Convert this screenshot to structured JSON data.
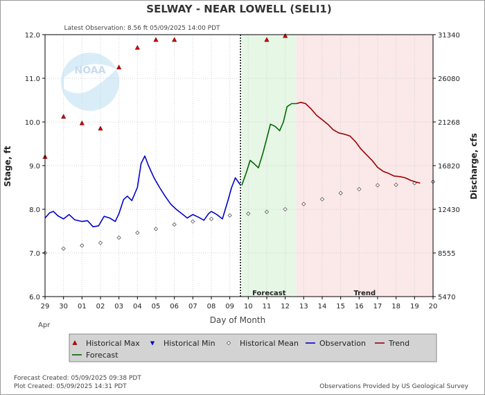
{
  "header": {
    "title": "SELWAY - NEAR LOWELL  (SELI1)",
    "latest_observation": "Latest Observation: 8.56 ft 05/09/2025 14:00 PDT"
  },
  "footer": {
    "forecast_created": "Forecast Created: 05/09/2025 09:38 PDT",
    "plot_created": "Plot Created: 05/09/2025 14:31 PDT",
    "provided_by": "Observations Provided by US Geological Survey"
  },
  "logo": {
    "text": "NOAA"
  },
  "chart_data": {
    "type": "line",
    "xlabel": "Day of Month",
    "ylabel_left": "Stage, ft",
    "ylabel_right": "Discharge, cfs",
    "x_range": [
      0,
      21
    ],
    "ylim": [
      6.0,
      12.0
    ],
    "x_tick_labels": [
      "29",
      "30",
      "01",
      "02",
      "03",
      "04",
      "05",
      "06",
      "07",
      "08",
      "09",
      "10",
      "11",
      "12",
      "13",
      "14",
      "15",
      "16",
      "17",
      "18",
      "19",
      "20"
    ],
    "month_label": "Apr",
    "y_ticks_left": [
      {
        "value": 6.0,
        "label": "6.0"
      },
      {
        "value": 7.0,
        "label": "7.0"
      },
      {
        "value": 8.0,
        "label": "8.0"
      },
      {
        "value": 9.0,
        "label": "9.0"
      },
      {
        "value": 10.0,
        "label": "10.0"
      },
      {
        "value": 11.0,
        "label": "11.0"
      },
      {
        "value": 12.0,
        "label": "12.0"
      }
    ],
    "y_ticks_right": [
      {
        "stage": 6.0,
        "label": "5470"
      },
      {
        "stage": 7.0,
        "label": "8555"
      },
      {
        "stage": 8.0,
        "label": "12430"
      },
      {
        "stage": 9.0,
        "label": "16820"
      },
      {
        "stage": 10.0,
        "label": "21268"
      },
      {
        "stage": 11.0,
        "label": "26080"
      },
      {
        "stage": 12.0,
        "label": "31340"
      }
    ],
    "regions": [
      {
        "label": "Forecast",
        "start": 10.65,
        "end": 13.6,
        "color": "#e6f7e6"
      },
      {
        "label": "Trend",
        "start": 13.6,
        "end": 21,
        "color": "#fbe8e8"
      }
    ],
    "now_line": 10.58,
    "series": [
      {
        "name": "Historical Max",
        "kind": "marker-up",
        "color": "#cc0000",
        "points": [
          [
            0,
            9.2
          ],
          [
            1,
            10.12
          ],
          [
            2,
            9.97
          ],
          [
            3,
            9.85
          ],
          [
            4,
            11.25
          ],
          [
            5,
            11.7
          ],
          [
            6,
            11.88
          ],
          [
            7,
            11.88
          ],
          [
            12,
            11.88
          ],
          [
            13,
            11.97
          ]
        ]
      },
      {
        "name": "Historical Min",
        "kind": "marker-down",
        "color": "#0000cc",
        "points": []
      },
      {
        "name": "Historical Mean",
        "kind": "marker-diamond",
        "color": "#555555",
        "points": [
          [
            0,
            7.0
          ],
          [
            1,
            7.1
          ],
          [
            2,
            7.17
          ],
          [
            3,
            7.23
          ],
          [
            4,
            7.35
          ],
          [
            5,
            7.46
          ],
          [
            6,
            7.55
          ],
          [
            7,
            7.65
          ],
          [
            8,
            7.72
          ],
          [
            9,
            7.78
          ],
          [
            10,
            7.86
          ],
          [
            11,
            7.9
          ],
          [
            12,
            7.94
          ],
          [
            13,
            8.0
          ],
          [
            14,
            8.12
          ],
          [
            15,
            8.23
          ],
          [
            16,
            8.37
          ],
          [
            17,
            8.46
          ],
          [
            18,
            8.55
          ],
          [
            19,
            8.56
          ],
          [
            20,
            8.6
          ],
          [
            21,
            8.63
          ]
        ]
      },
      {
        "name": "Observation",
        "kind": "line",
        "color": "#0000cc",
        "points": [
          [
            0,
            7.8
          ],
          [
            0.25,
            7.92
          ],
          [
            0.45,
            7.95
          ],
          [
            0.7,
            7.85
          ],
          [
            1.0,
            7.78
          ],
          [
            1.3,
            7.88
          ],
          [
            1.6,
            7.76
          ],
          [
            2.0,
            7.72
          ],
          [
            2.3,
            7.74
          ],
          [
            2.6,
            7.6
          ],
          [
            2.9,
            7.62
          ],
          [
            3.2,
            7.84
          ],
          [
            3.5,
            7.8
          ],
          [
            3.8,
            7.72
          ],
          [
            4.0,
            7.9
          ],
          [
            4.25,
            8.22
          ],
          [
            4.45,
            8.3
          ],
          [
            4.7,
            8.2
          ],
          [
            5.0,
            8.5
          ],
          [
            5.2,
            9.05
          ],
          [
            5.4,
            9.22
          ],
          [
            5.6,
            9.0
          ],
          [
            5.9,
            8.72
          ],
          [
            6.2,
            8.5
          ],
          [
            6.5,
            8.3
          ],
          [
            6.8,
            8.12
          ],
          [
            7.1,
            8.0
          ],
          [
            7.4,
            7.9
          ],
          [
            7.7,
            7.8
          ],
          [
            8.0,
            7.88
          ],
          [
            8.3,
            7.82
          ],
          [
            8.6,
            7.75
          ],
          [
            8.85,
            7.9
          ],
          [
            9.0,
            7.95
          ],
          [
            9.3,
            7.88
          ],
          [
            9.6,
            7.78
          ],
          [
            9.9,
            8.2
          ],
          [
            10.1,
            8.5
          ],
          [
            10.3,
            8.72
          ],
          [
            10.5,
            8.6
          ],
          [
            10.58,
            8.56
          ]
        ]
      },
      {
        "name": "Forecast",
        "kind": "line",
        "color": "#006600",
        "points": [
          [
            10.65,
            8.55
          ],
          [
            10.9,
            8.85
          ],
          [
            11.1,
            9.12
          ],
          [
            11.3,
            9.05
          ],
          [
            11.55,
            8.95
          ],
          [
            11.8,
            9.3
          ],
          [
            12.0,
            9.62
          ],
          [
            12.2,
            9.95
          ],
          [
            12.45,
            9.9
          ],
          [
            12.7,
            9.8
          ],
          [
            12.9,
            10.0
          ],
          [
            13.1,
            10.35
          ],
          [
            13.35,
            10.42
          ],
          [
            13.6,
            10.42
          ]
        ]
      },
      {
        "name": "Trend",
        "kind": "line",
        "color": "#990000",
        "points": [
          [
            13.6,
            10.42
          ],
          [
            13.85,
            10.45
          ],
          [
            14.1,
            10.42
          ],
          [
            14.4,
            10.3
          ],
          [
            14.7,
            10.15
          ],
          [
            15.0,
            10.05
          ],
          [
            15.3,
            9.95
          ],
          [
            15.6,
            9.82
          ],
          [
            15.9,
            9.75
          ],
          [
            16.2,
            9.72
          ],
          [
            16.5,
            9.68
          ],
          [
            16.8,
            9.55
          ],
          [
            17.1,
            9.38
          ],
          [
            17.4,
            9.25
          ],
          [
            17.7,
            9.12
          ],
          [
            18.0,
            8.96
          ],
          [
            18.3,
            8.87
          ],
          [
            18.6,
            8.82
          ],
          [
            18.9,
            8.76
          ],
          [
            19.2,
            8.75
          ],
          [
            19.5,
            8.72
          ],
          [
            19.8,
            8.66
          ],
          [
            20.1,
            8.62
          ],
          [
            20.3,
            8.6
          ]
        ]
      }
    ],
    "legend": {
      "placement": "bottom",
      "items": [
        {
          "name": "Historical Max",
          "kind": "marker-up",
          "color": "#cc0000"
        },
        {
          "name": "Historical Min",
          "kind": "marker-down",
          "color": "#0000cc"
        },
        {
          "name": "Historical Mean",
          "kind": "marker-diamond",
          "color": "#555555"
        },
        {
          "name": "Observation",
          "kind": "line",
          "color": "#0000cc"
        },
        {
          "name": "Trend",
          "kind": "line",
          "color": "#990000"
        },
        {
          "name": "Forecast",
          "kind": "line",
          "color": "#006600"
        }
      ]
    },
    "grid": true
  }
}
